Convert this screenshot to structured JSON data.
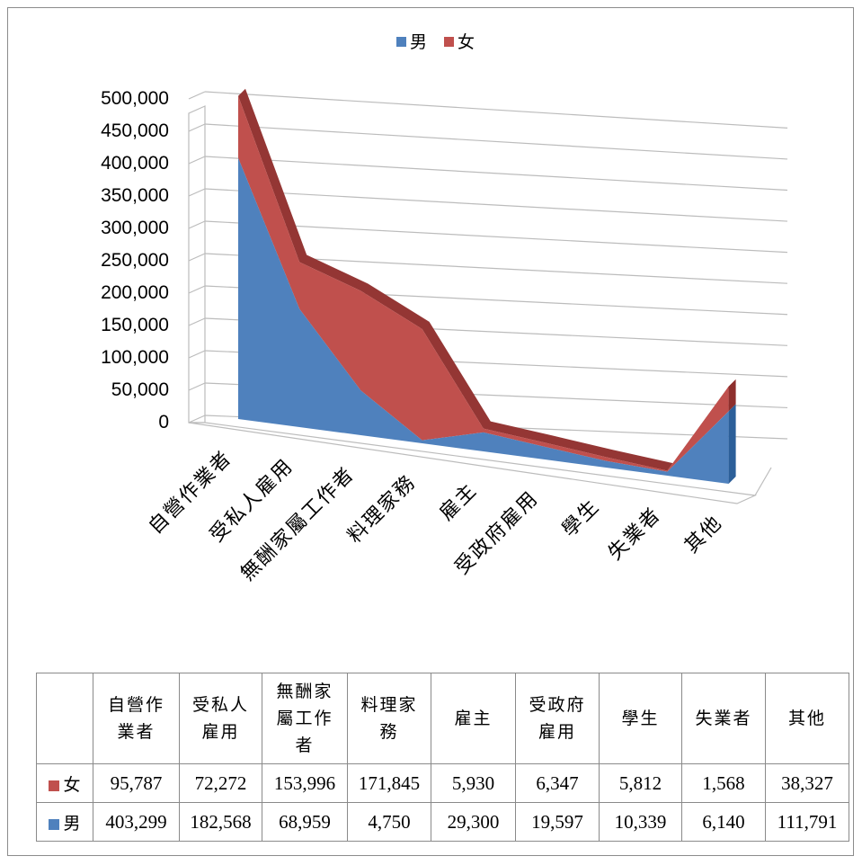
{
  "chart_data": {
    "type": "area",
    "subtype": "3d-stacked-area",
    "categories": [
      "自營作業者",
      "受私人雇用",
      "無酬家屬工作者",
      "料理家務",
      "雇主",
      "受政府雇用",
      "學生",
      "失業者",
      "其他"
    ],
    "series": [
      {
        "name": "男",
        "color": "#4f81bd",
        "values": [
          403299,
          182568,
          68959,
          4750,
          29300,
          19597,
          10339,
          6140,
          111791
        ]
      },
      {
        "name": "女",
        "color": "#c0504d",
        "values": [
          95787,
          72272,
          153996,
          171845,
          5930,
          6347,
          5812,
          1568,
          38327
        ]
      }
    ],
    "y_ticks": [
      "500,000",
      "450,000",
      "400,000",
      "350,000",
      "300,000",
      "250,000",
      "200,000",
      "150,000",
      "100,000",
      "50,000",
      "0"
    ],
    "ylim": [
      0,
      500000
    ],
    "legend": {
      "position": "top",
      "items": [
        "男",
        "女"
      ]
    },
    "grid": true
  },
  "table": {
    "headers": [
      "自營作業者",
      "受私人雇用",
      "無酬家屬工作者",
      "料理家務",
      "雇主",
      "受政府雇用",
      "學生",
      "失業者",
      "其他"
    ],
    "rows": [
      {
        "label": "女",
        "color": "#c0504d",
        "values": [
          "95,787",
          "72,272",
          "153,996",
          "171,845",
          "5,930",
          "6,347",
          "5,812",
          "1,568",
          "38,327"
        ]
      },
      {
        "label": "男",
        "color": "#4f81bd",
        "values": [
          "403,299",
          "182,568",
          "68,959",
          "4,750",
          "29,300",
          "19,597",
          "10,339",
          "6,140",
          "111,791"
        ]
      }
    ]
  }
}
